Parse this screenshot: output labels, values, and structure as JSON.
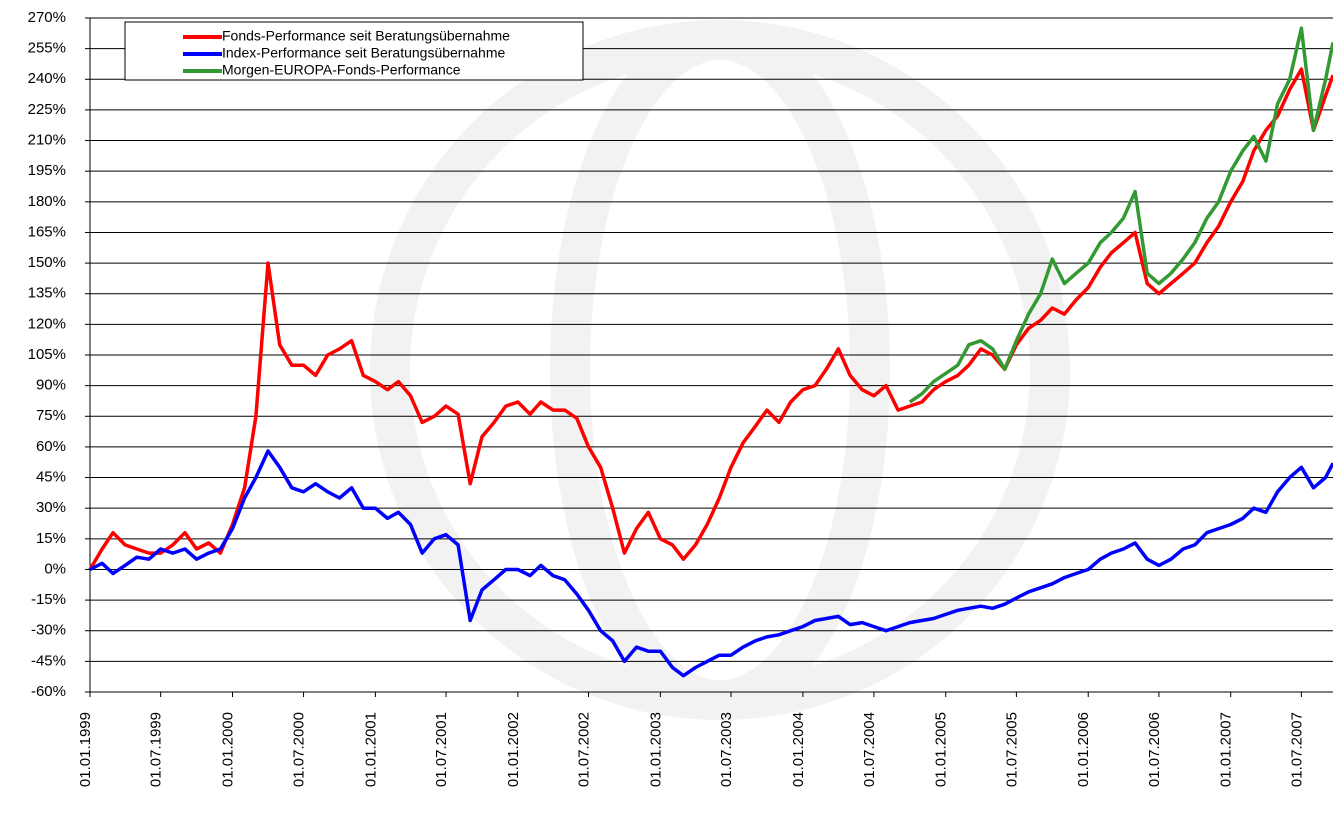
{
  "chart_data": {
    "type": "line",
    "x": [
      "1999-01-01",
      "1999-02-01",
      "1999-03-01",
      "1999-04-01",
      "1999-05-01",
      "1999-06-01",
      "1999-07-01",
      "1999-08-01",
      "1999-09-01",
      "1999-10-01",
      "1999-11-01",
      "1999-12-01",
      "2000-01-01",
      "2000-02-01",
      "2000-03-01",
      "2000-04-01",
      "2000-05-01",
      "2000-06-01",
      "2000-07-01",
      "2000-08-01",
      "2000-09-01",
      "2000-10-01",
      "2000-11-01",
      "2000-12-01",
      "2001-01-01",
      "2001-02-01",
      "2001-03-01",
      "2001-04-01",
      "2001-05-01",
      "2001-06-01",
      "2001-07-01",
      "2001-08-01",
      "2001-09-01",
      "2001-10-01",
      "2001-11-01",
      "2001-12-01",
      "2002-01-01",
      "2002-02-01",
      "2002-03-01",
      "2002-04-01",
      "2002-05-01",
      "2002-06-01",
      "2002-07-01",
      "2002-08-01",
      "2002-09-01",
      "2002-10-01",
      "2002-11-01",
      "2002-12-01",
      "2003-01-01",
      "2003-02-01",
      "2003-03-01",
      "2003-04-01",
      "2003-05-01",
      "2003-06-01",
      "2003-07-01",
      "2003-08-01",
      "2003-09-01",
      "2003-10-01",
      "2003-11-01",
      "2003-12-01",
      "2004-01-01",
      "2004-02-01",
      "2004-03-01",
      "2004-04-01",
      "2004-05-01",
      "2004-06-01",
      "2004-07-01",
      "2004-08-01",
      "2004-09-01",
      "2004-10-01",
      "2004-11-01",
      "2004-12-01",
      "2005-01-01",
      "2005-02-01",
      "2005-03-01",
      "2005-04-01",
      "2005-05-01",
      "2005-06-01",
      "2005-07-01",
      "2005-08-01",
      "2005-09-01",
      "2005-10-01",
      "2005-11-01",
      "2005-12-01",
      "2006-01-01",
      "2006-02-01",
      "2006-03-01",
      "2006-04-01",
      "2006-05-01",
      "2006-06-01",
      "2006-07-01",
      "2006-08-01",
      "2006-09-01",
      "2006-10-01",
      "2006-11-01",
      "2006-12-01",
      "2007-01-01",
      "2007-02-01",
      "2007-03-01",
      "2007-04-01",
      "2007-05-01",
      "2007-06-01",
      "2007-07-01",
      "2007-08-01",
      "2007-09-01",
      "2007-09-20"
    ],
    "series": [
      {
        "name": "Fonds-Performance seit Beratungsübernahme",
        "color": "#ff0000",
        "values": [
          0,
          10,
          18,
          12,
          10,
          8,
          8,
          12,
          18,
          10,
          13,
          8,
          22,
          40,
          75,
          150,
          110,
          100,
          100,
          95,
          105,
          108,
          112,
          95,
          92,
          88,
          92,
          85,
          72,
          75,
          80,
          76,
          42,
          65,
          72,
          80,
          82,
          76,
          82,
          78,
          78,
          74,
          60,
          50,
          30,
          8,
          20,
          28,
          15,
          12,
          5,
          12,
          22,
          35,
          50,
          62,
          70,
          78,
          72,
          82,
          88,
          90,
          98,
          108,
          95,
          88,
          85,
          90,
          78,
          80,
          82,
          88,
          92,
          95,
          100,
          108,
          105,
          98,
          110,
          118,
          122,
          128,
          125,
          132,
          138,
          148,
          155,
          160,
          165,
          140,
          135,
          140,
          145,
          150,
          160,
          168,
          180,
          190,
          205,
          215,
          222,
          235,
          245,
          215,
          232,
          242
        ]
      },
      {
        "name": "Index-Performance seit Beratungsübernahme",
        "color": "#0000ff",
        "values": [
          0,
          3,
          -2,
          2,
          6,
          5,
          10,
          8,
          10,
          5,
          8,
          10,
          20,
          35,
          45,
          58,
          50,
          40,
          38,
          42,
          38,
          35,
          40,
          30,
          30,
          25,
          28,
          22,
          8,
          15,
          17,
          12,
          -25,
          -10,
          -5,
          0,
          0,
          -3,
          2,
          -3,
          -5,
          -12,
          -20,
          -30,
          -35,
          -45,
          -38,
          -40,
          -40,
          -48,
          -52,
          -48,
          -45,
          -42,
          -42,
          -38,
          -35,
          -33,
          -32,
          -30,
          -28,
          -25,
          -24,
          -23,
          -27,
          -26,
          -28,
          -30,
          -28,
          -26,
          -25,
          -24,
          -22,
          -20,
          -19,
          -18,
          -19,
          -17,
          -14,
          -11,
          -9,
          -7,
          -4,
          -2,
          0,
          5,
          8,
          10,
          13,
          5,
          2,
          5,
          10,
          12,
          18,
          20,
          22,
          25,
          30,
          28,
          38,
          45,
          50,
          40,
          45,
          52
        ]
      },
      {
        "name": "Morgen-EUROPA-Fonds-Performance",
        "color": "#339933",
        "values": [
          null,
          null,
          null,
          null,
          null,
          null,
          null,
          null,
          null,
          null,
          null,
          null,
          null,
          null,
          null,
          null,
          null,
          null,
          null,
          null,
          null,
          null,
          null,
          null,
          null,
          null,
          null,
          null,
          null,
          null,
          null,
          null,
          null,
          null,
          null,
          null,
          null,
          null,
          null,
          null,
          null,
          null,
          null,
          null,
          null,
          null,
          null,
          null,
          null,
          null,
          null,
          null,
          null,
          null,
          null,
          null,
          null,
          null,
          null,
          null,
          null,
          null,
          null,
          null,
          null,
          null,
          null,
          null,
          null,
          82,
          86,
          92,
          96,
          100,
          110,
          112,
          108,
          98,
          112,
          125,
          135,
          152,
          140,
          145,
          150,
          160,
          165,
          172,
          185,
          145,
          140,
          145,
          152,
          160,
          172,
          180,
          195,
          205,
          212,
          200,
          228,
          240,
          265,
          215,
          240,
          258
        ]
      }
    ],
    "xlim": [
      "1999-01-01",
      "2007-09-20"
    ],
    "xticks": [
      {
        "value": "1999-01-01",
        "label": "01.01.1999"
      },
      {
        "value": "1999-07-01",
        "label": "01.07.1999"
      },
      {
        "value": "2000-01-01",
        "label": "01.01.2000"
      },
      {
        "value": "2000-07-01",
        "label": "01.07.2000"
      },
      {
        "value": "2001-01-01",
        "label": "01.01.2001"
      },
      {
        "value": "2001-07-01",
        "label": "01.07.2001"
      },
      {
        "value": "2002-01-01",
        "label": "01.01.2002"
      },
      {
        "value": "2002-07-01",
        "label": "01.07.2002"
      },
      {
        "value": "2003-01-01",
        "label": "01.01.2003"
      },
      {
        "value": "2003-07-01",
        "label": "01.07.2003"
      },
      {
        "value": "2004-01-01",
        "label": "01.01.2004"
      },
      {
        "value": "2004-07-01",
        "label": "01.07.2004"
      },
      {
        "value": "2005-01-01",
        "label": "01.01.2005"
      },
      {
        "value": "2005-07-01",
        "label": "01.07.2005"
      },
      {
        "value": "2006-01-01",
        "label": "01.01.2006"
      },
      {
        "value": "2006-07-01",
        "label": "01.07.2006"
      },
      {
        "value": "2007-01-01",
        "label": "01.01.2007"
      },
      {
        "value": "2007-07-01",
        "label": "01.07.2007"
      }
    ],
    "ylim": [
      -60,
      270
    ],
    "yticks": [
      {
        "value": 270,
        "label": "270%"
      },
      {
        "value": 255,
        "label": "255%"
      },
      {
        "value": 240,
        "label": "240%"
      },
      {
        "value": 225,
        "label": "225%"
      },
      {
        "value": 210,
        "label": "210%"
      },
      {
        "value": 195,
        "label": "195%"
      },
      {
        "value": 180,
        "label": "180%"
      },
      {
        "value": 165,
        "label": "165%"
      },
      {
        "value": 150,
        "label": "150%"
      },
      {
        "value": 135,
        "label": "135%"
      },
      {
        "value": 120,
        "label": "120%"
      },
      {
        "value": 105,
        "label": "105%"
      },
      {
        "value": 90,
        "label": "90%"
      },
      {
        "value": 75,
        "label": "75%"
      },
      {
        "value": 60,
        "label": "60%"
      },
      {
        "value": 45,
        "label": "45%"
      },
      {
        "value": 30,
        "label": "30%"
      },
      {
        "value": 15,
        "label": "15%"
      },
      {
        "value": 0,
        "label": "0%"
      },
      {
        "value": -15,
        "label": "-15%"
      },
      {
        "value": -30,
        "label": "-30%"
      },
      {
        "value": -45,
        "label": "-45%"
      },
      {
        "value": -60,
        "label": "-60%"
      }
    ],
    "grid": true,
    "legend": "upper left"
  }
}
